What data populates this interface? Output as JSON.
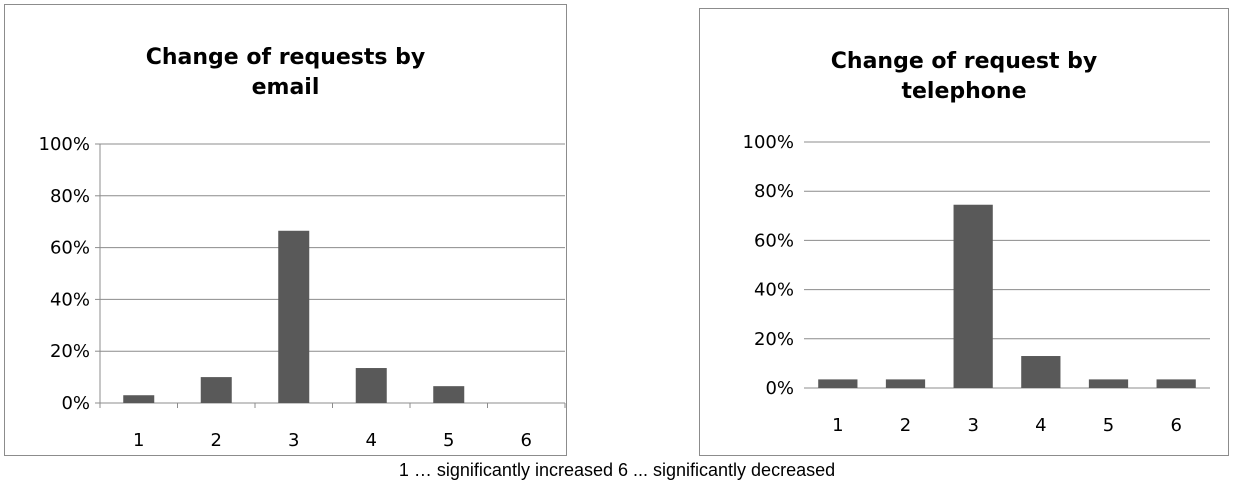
{
  "chart_data": [
    {
      "type": "bar",
      "title": "Change of requests by\nemail",
      "categories": [
        "1",
        "2",
        "3",
        "4",
        "5",
        "6"
      ],
      "values": [
        3,
        10,
        66.5,
        13.5,
        6.5,
        0
      ],
      "y_ticks": [
        "0%",
        "20%",
        "40%",
        "60%",
        "80%",
        "100%"
      ],
      "ylim": [
        0,
        100
      ],
      "grid": true,
      "bar_color": "#595959"
    },
    {
      "type": "bar",
      "title": "Change of request by\ntelephone",
      "categories": [
        "1",
        "2",
        "3",
        "4",
        "5",
        "6"
      ],
      "values": [
        3.5,
        3.5,
        74.5,
        13,
        3.5,
        3.5
      ],
      "y_ticks": [
        "0%",
        "20%",
        "40%",
        "60%",
        "80%",
        "100%"
      ],
      "ylim": [
        0,
        100
      ],
      "grid": true,
      "bar_color": "#595959"
    }
  ],
  "caption": "1 … significantly increased   6 ... significantly decreased"
}
